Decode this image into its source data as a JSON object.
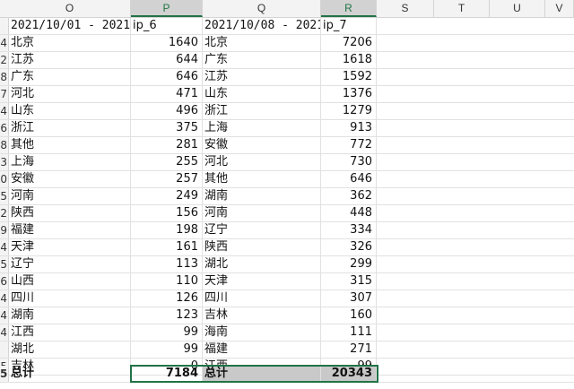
{
  "columns": [
    "O",
    "P",
    "Q",
    "R",
    "S",
    "T",
    "U",
    "V"
  ],
  "header": {
    "o": "2021/10/01 - 2021/",
    "p": "ip_6",
    "q": "2021/10/08 - 2021",
    "r": "ip_7"
  },
  "row_numbers": [
    "4",
    "2",
    "8",
    "7",
    "4",
    "6",
    "8",
    "3",
    "0",
    "5",
    "2",
    "9",
    "4",
    "5",
    "6",
    "4",
    "4",
    "4",
    "",
    "5"
  ],
  "rows": [
    {
      "o": "北京",
      "p": "1640",
      "q": "北京",
      "r": "7206"
    },
    {
      "o": "江苏",
      "p": "644",
      "q": "广东",
      "r": "1618"
    },
    {
      "o": "广东",
      "p": "646",
      "q": "江苏",
      "r": "1592"
    },
    {
      "o": "河北",
      "p": "471",
      "q": "山东",
      "r": "1376"
    },
    {
      "o": "山东",
      "p": "496",
      "q": "浙江",
      "r": "1279"
    },
    {
      "o": "浙江",
      "p": "375",
      "q": "上海",
      "r": "913"
    },
    {
      "o": "其他",
      "p": "281",
      "q": "安徽",
      "r": "772"
    },
    {
      "o": "上海",
      "p": "255",
      "q": "河北",
      "r": "730"
    },
    {
      "o": "安徽",
      "p": "257",
      "q": "其他",
      "r": "646"
    },
    {
      "o": "河南",
      "p": "249",
      "q": "湖南",
      "r": "362"
    },
    {
      "o": "陕西",
      "p": "156",
      "q": "河南",
      "r": "448"
    },
    {
      "o": "福建",
      "p": "198",
      "q": "辽宁",
      "r": "334"
    },
    {
      "o": "天津",
      "p": "161",
      "q": "陕西",
      "r": "326"
    },
    {
      "o": "辽宁",
      "p": "113",
      "q": "湖北",
      "r": "299"
    },
    {
      "o": "山西",
      "p": "110",
      "q": "天津",
      "r": "315"
    },
    {
      "o": "四川",
      "p": "126",
      "q": "四川",
      "r": "307"
    },
    {
      "o": "湖南",
      "p": "123",
      "q": "吉林",
      "r": "160"
    },
    {
      "o": "江西",
      "p": "99",
      "q": "海南",
      "r": "111"
    },
    {
      "o": "湖北",
      "p": "99",
      "q": "福建",
      "r": "271"
    },
    {
      "o": "吉林",
      "p": "0",
      "q": "江西",
      "r": "99"
    }
  ],
  "total": {
    "o": "总计",
    "p": "7184",
    "q": "总计",
    "r": "20343"
  }
}
